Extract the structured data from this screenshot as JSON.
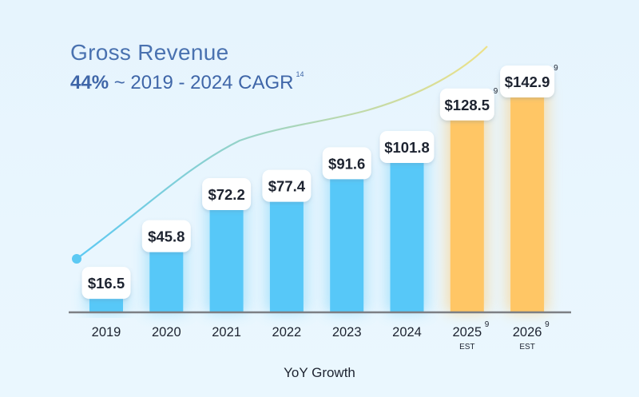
{
  "chart_data": {
    "type": "bar",
    "title": "Gross Revenue",
    "subtitle_bold": "44%",
    "subtitle_rest": " ~ 2019 - 2024 CAGR",
    "subtitle_sup": "14",
    "xlabel": "YoY Growth",
    "ylabel": "",
    "ylim": [
      0,
      170
    ],
    "categories": [
      "2019",
      "2020",
      "2021",
      "2022",
      "2023",
      "2024",
      "2025",
      "2026"
    ],
    "values": [
      16.5,
      45.8,
      72.2,
      77.4,
      91.6,
      101.8,
      128.5,
      142.9
    ],
    "labels": [
      "$16.5",
      "$45.8",
      "$72.2",
      "$77.4",
      "$91.6",
      "$101.8",
      "$128.5",
      "$142.9"
    ],
    "label_sup": [
      "",
      "",
      "",
      "",
      "",
      "",
      "9",
      "9"
    ],
    "category_sup": [
      "",
      "",
      "",
      "",
      "",
      "",
      "9",
      "9"
    ],
    "category_note": [
      "",
      "",
      "",
      "",
      "",
      "",
      "EST",
      "EST"
    ],
    "estimated": [
      false,
      false,
      false,
      false,
      false,
      false,
      true,
      true
    ],
    "colors": {
      "actual": "#57c8f8",
      "estimate": "#ffc665",
      "axis": "#7d7f84",
      "text": "#1d2330",
      "trend_start": "#5cc9f3",
      "trend_end": "#ede188"
    }
  }
}
